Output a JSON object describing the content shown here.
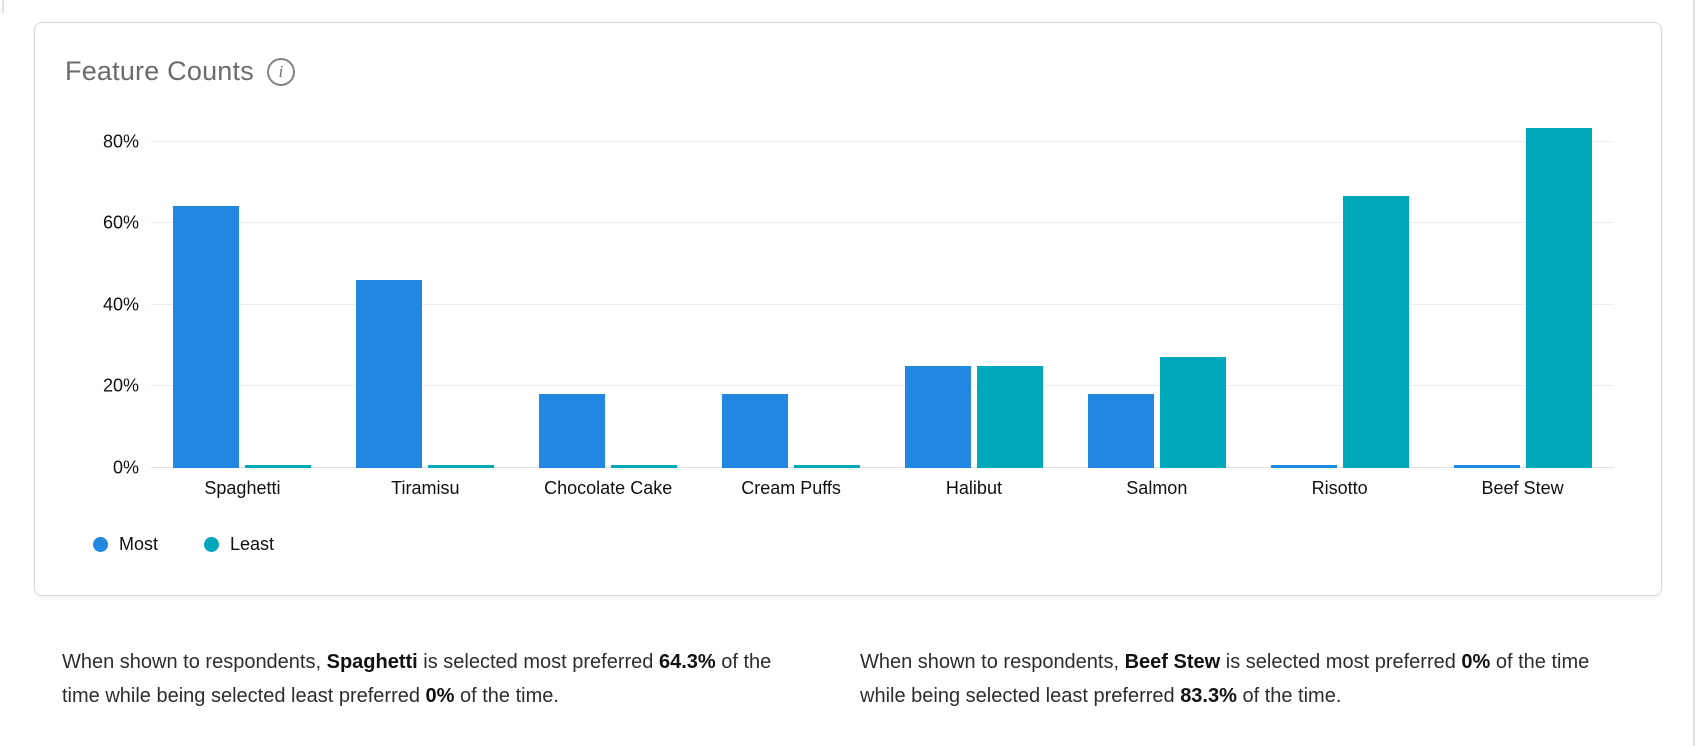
{
  "card": {
    "title": "Feature Counts",
    "info_icon_glyph": "i"
  },
  "chart_data": {
    "type": "bar",
    "title": "Feature Counts",
    "categories": [
      "Spaghetti",
      "Tiramisu",
      "Chocolate Cake",
      "Cream Puffs",
      "Halibut",
      "Salmon",
      "Risotto",
      "Beef Stew"
    ],
    "series": [
      {
        "name": "Most",
        "color": "#2187E0",
        "values": [
          64.3,
          46.2,
          18.2,
          18.2,
          25.0,
          18.2,
          0,
          0
        ]
      },
      {
        "name": "Least",
        "color": "#00A8BC",
        "values": [
          0,
          0,
          0,
          0,
          25.0,
          27.3,
          66.7,
          83.3
        ]
      }
    ],
    "y_ticks": [
      {
        "label": "0%",
        "value": 0
      },
      {
        "label": "20%",
        "value": 20
      },
      {
        "label": "40%",
        "value": 40
      },
      {
        "label": "60%",
        "value": 60
      },
      {
        "label": "80%",
        "value": 80
      }
    ],
    "ylim": [
      0,
      90
    ],
    "grid": true,
    "legend_position": "bottom-left"
  },
  "insights": [
    {
      "segments": [
        {
          "text": "When shown to respondents, ",
          "bold": false
        },
        {
          "text": "Spaghetti",
          "bold": true
        },
        {
          "text": " is selected most preferred ",
          "bold": false
        },
        {
          "text": "64.3%",
          "bold": true
        },
        {
          "text": " of the time while being selected least preferred ",
          "bold": false
        },
        {
          "text": "0%",
          "bold": true
        },
        {
          "text": " of the time.",
          "bold": false
        }
      ]
    },
    {
      "segments": [
        {
          "text": "When shown to respondents, ",
          "bold": false
        },
        {
          "text": "Beef Stew",
          "bold": true
        },
        {
          "text": " is selected most preferred ",
          "bold": false
        },
        {
          "text": "0%",
          "bold": true
        },
        {
          "text": " of the time while being selected least preferred ",
          "bold": false
        },
        {
          "text": "83.3%",
          "bold": true
        },
        {
          "text": " of the time.",
          "bold": false
        }
      ]
    }
  ]
}
